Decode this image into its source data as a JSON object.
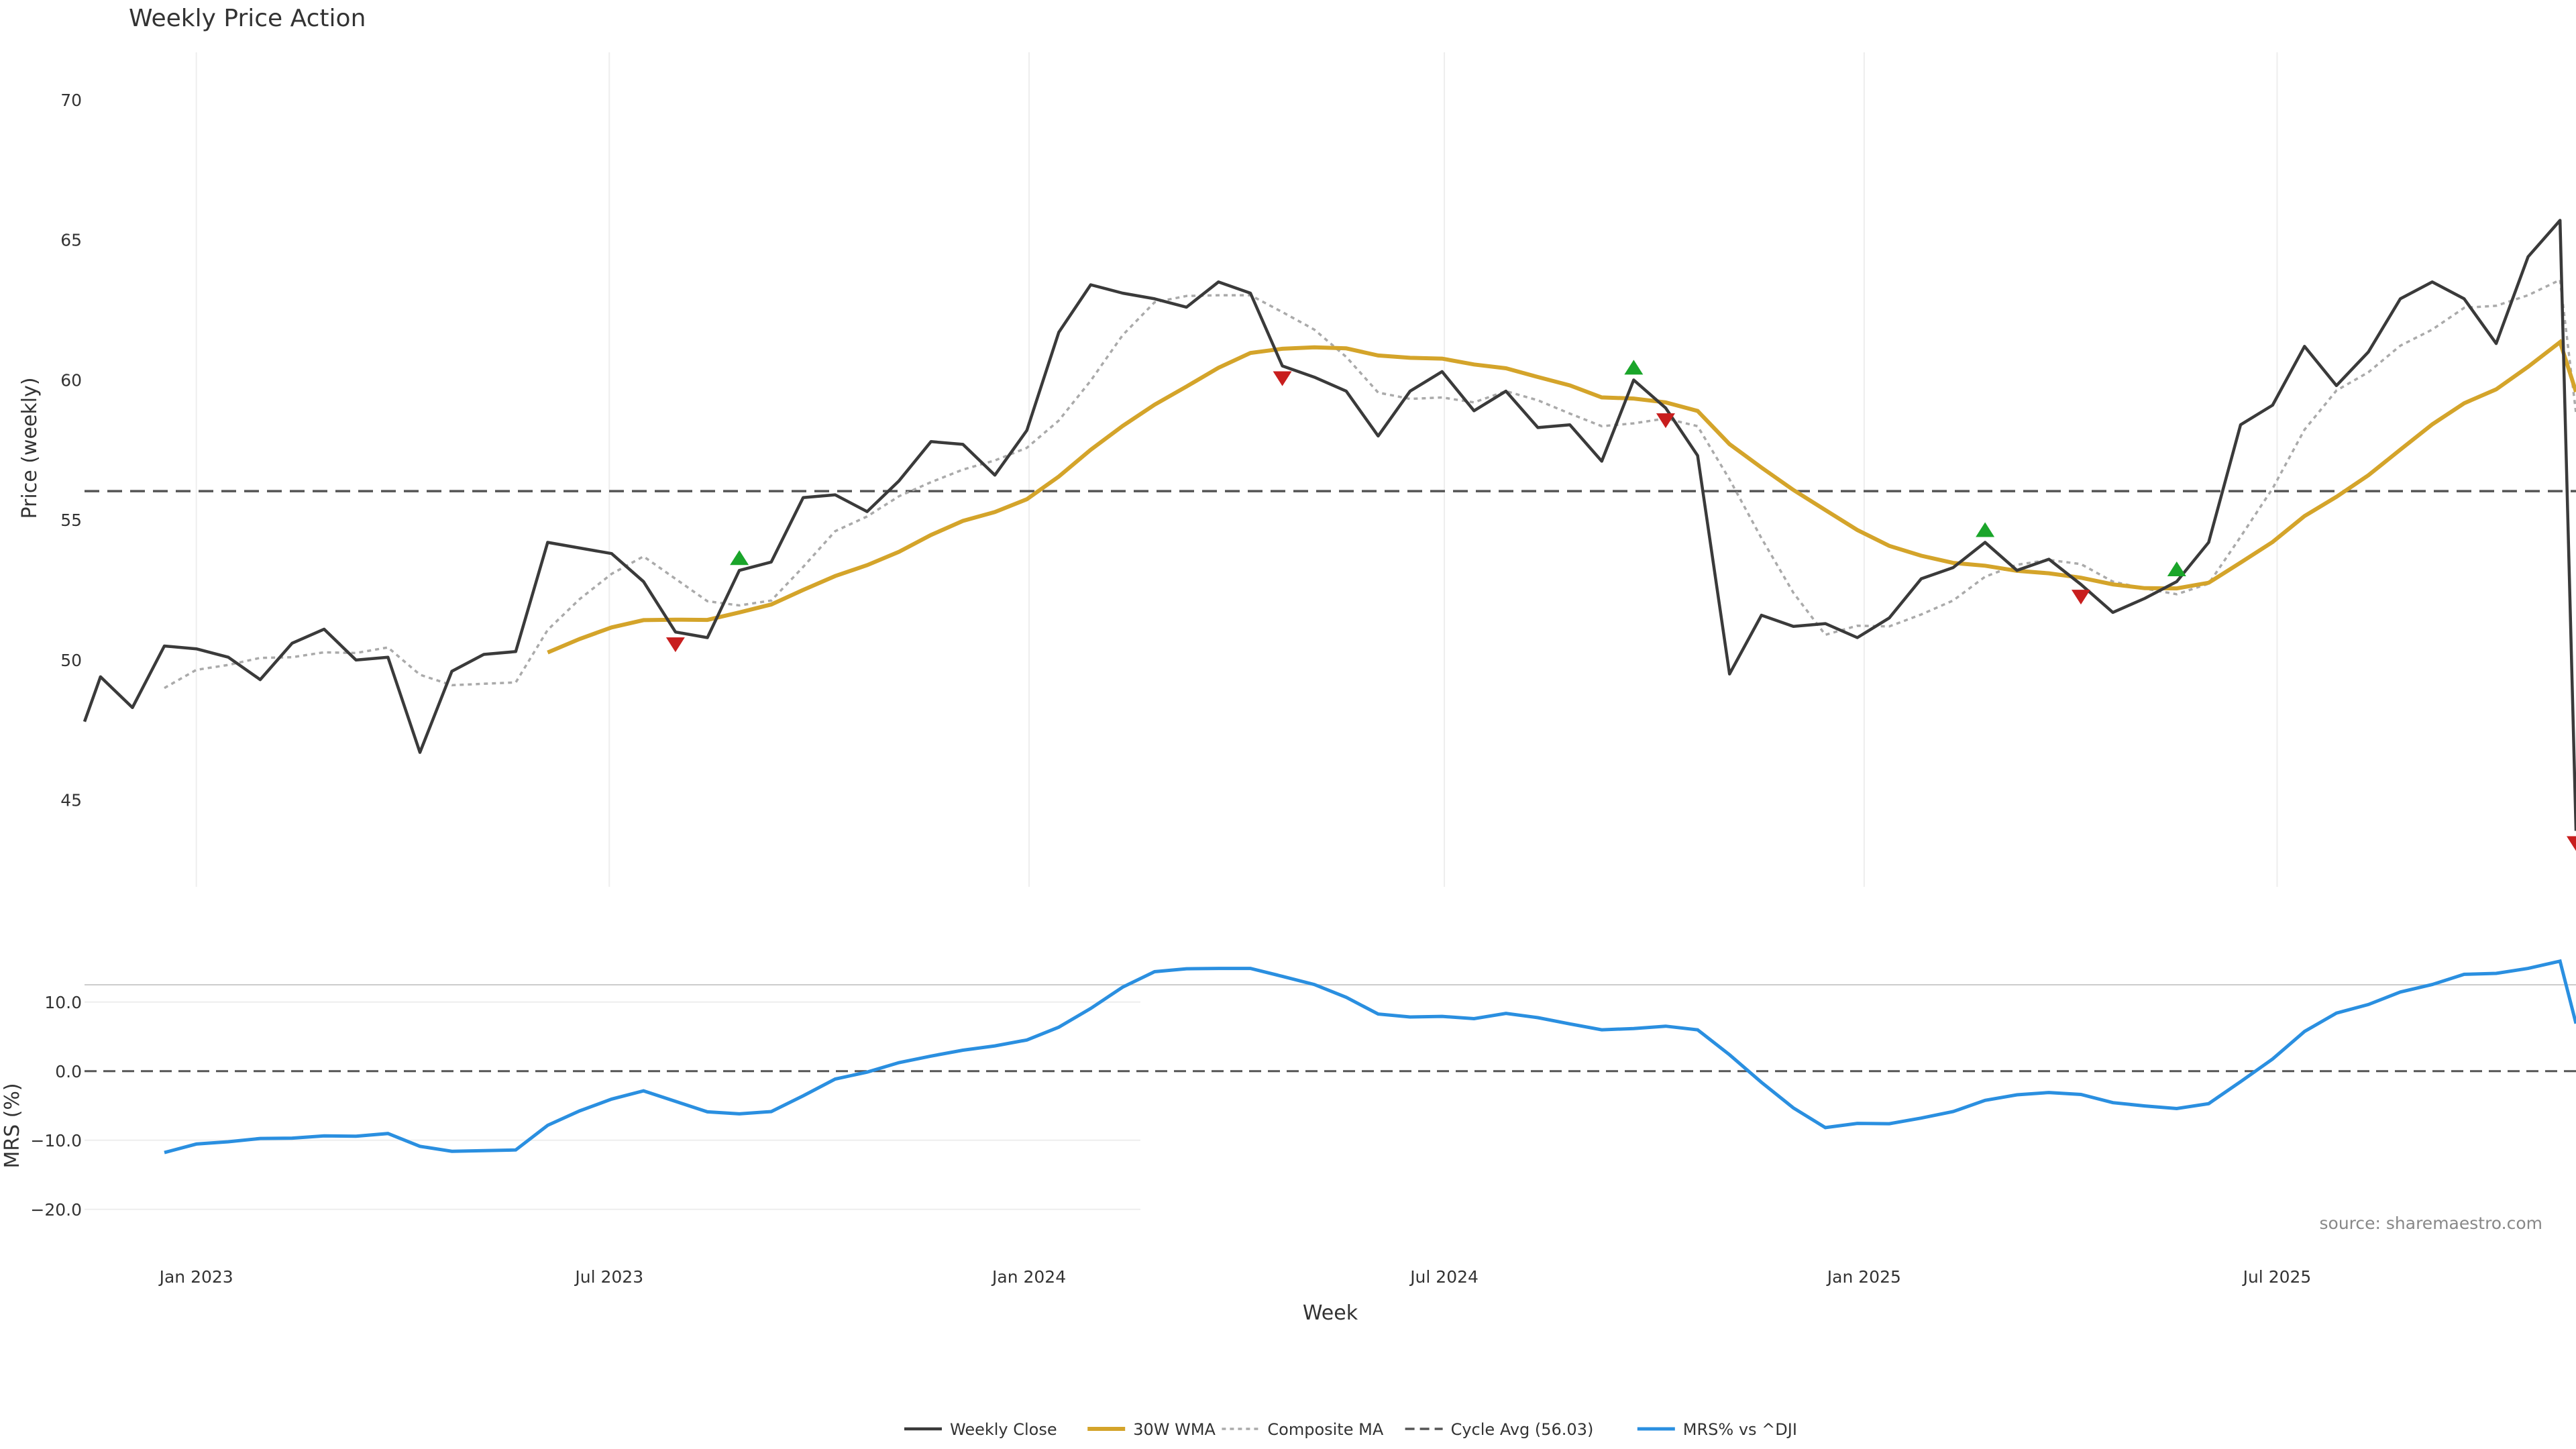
{
  "chart_data": {
    "type": "line",
    "title": "Weekly Price Action",
    "source": "source: sharemaestro.com",
    "xlabel": "Week",
    "x_ticks": [
      "Jan 2023",
      "Jul 2023",
      "Jan 2024",
      "Jul 2024",
      "Jan 2025",
      "Jul 2025"
    ],
    "x_range": [
      "2022-11-13",
      "2025-11-09"
    ],
    "price_panel": {
      "ylabel": "Price (weekly)",
      "yticks": [
        45,
        50,
        55,
        60,
        65,
        70
      ],
      "ylim": [
        41.9,
        71.7
      ],
      "grid": "x",
      "cycle_avg": 56.03
    },
    "mrs_panel": {
      "ylabel": "MRS (%)",
      "yticks": [
        -20,
        -10,
        0,
        10
      ],
      "ytick_labels": [
        "−20.0",
        "−10.0",
        "0.0",
        "10.0"
      ],
      "ylim": [
        -24,
        12.5
      ],
      "zero_line": 0
    },
    "legend": {
      "position": "bottom-center",
      "entries": [
        "Weekly Close",
        "30W WMA",
        "Composite MA",
        "Cycle Avg (56.03)",
        "MRS% vs ^DJI"
      ]
    },
    "colors": {
      "close": "#3a3a3a",
      "wma": "#d4a42a",
      "composite": "#aaaaaa",
      "cycle": "#555555",
      "mrs": "#2a8fe0",
      "buy": "#1aa52a",
      "sell": "#c81e1e"
    },
    "series": [
      {
        "name": "Weekly Close",
        "points": [
          [
            "2022-11-13",
            47.8
          ],
          [
            "2022-11-20",
            49.4
          ],
          [
            "2022-12-04",
            48.3
          ],
          [
            "2022-12-18",
            50.5
          ],
          [
            "2023-01-01",
            50.4
          ],
          [
            "2023-01-15",
            50.1
          ],
          [
            "2023-01-29",
            49.3
          ],
          [
            "2023-02-12",
            50.6
          ],
          [
            "2023-02-26",
            51.1
          ],
          [
            "2023-03-12",
            50.0
          ],
          [
            "2023-03-26",
            50.1
          ],
          [
            "2023-04-09",
            46.7
          ],
          [
            "2023-04-23",
            49.6
          ],
          [
            "2023-05-07",
            50.2
          ],
          [
            "2023-05-21",
            50.3
          ],
          [
            "2023-06-04",
            54.2
          ],
          [
            "2023-06-18",
            54.0
          ],
          [
            "2023-07-02",
            53.8
          ],
          [
            "2023-07-16",
            52.8
          ],
          [
            "2023-07-30",
            51.0
          ],
          [
            "2023-08-13",
            50.8
          ],
          [
            "2023-08-27",
            53.2
          ],
          [
            "2023-09-10",
            53.5
          ],
          [
            "2023-09-24",
            55.8
          ],
          [
            "2023-10-08",
            55.9
          ],
          [
            "2023-10-22",
            55.3
          ],
          [
            "2023-11-05",
            56.4
          ],
          [
            "2023-11-19",
            57.8
          ],
          [
            "2023-12-03",
            57.7
          ],
          [
            "2023-12-17",
            56.6
          ],
          [
            "2023-12-31",
            58.2
          ],
          [
            "2024-01-14",
            61.7
          ],
          [
            "2024-01-28",
            63.4
          ],
          [
            "2024-02-11",
            63.1
          ],
          [
            "2024-02-25",
            62.9
          ],
          [
            "2024-03-10",
            62.6
          ],
          [
            "2024-03-24",
            63.5
          ],
          [
            "2024-04-07",
            63.1
          ],
          [
            "2024-04-21",
            60.5
          ],
          [
            "2024-05-05",
            60.1
          ],
          [
            "2024-05-19",
            59.6
          ],
          [
            "2024-06-02",
            58.0
          ],
          [
            "2024-06-16",
            59.6
          ],
          [
            "2024-06-30",
            60.3
          ],
          [
            "2024-07-14",
            58.9
          ],
          [
            "2024-07-28",
            59.6
          ],
          [
            "2024-08-11",
            58.3
          ],
          [
            "2024-08-25",
            58.4
          ],
          [
            "2024-09-08",
            57.1
          ],
          [
            "2024-09-22",
            60.0
          ],
          [
            "2024-10-06",
            59.0
          ],
          [
            "2024-10-20",
            57.3
          ],
          [
            "2024-11-03",
            49.5
          ],
          [
            "2024-11-17",
            51.6
          ],
          [
            "2024-12-01",
            51.2
          ],
          [
            "2024-12-15",
            51.3
          ],
          [
            "2024-12-29",
            50.8
          ],
          [
            "2025-01-12",
            51.5
          ],
          [
            "2025-01-26",
            52.9
          ],
          [
            "2025-02-09",
            53.3
          ],
          [
            "2025-02-23",
            54.2
          ],
          [
            "2025-03-09",
            53.2
          ],
          [
            "2025-03-23",
            53.6
          ],
          [
            "2025-04-06",
            52.7
          ],
          [
            "2025-04-20",
            51.7
          ],
          [
            "2025-05-04",
            52.2
          ],
          [
            "2025-05-18",
            52.8
          ],
          [
            "2025-06-01",
            54.2
          ],
          [
            "2025-06-15",
            58.4
          ],
          [
            "2025-06-29",
            59.1
          ],
          [
            "2025-07-13",
            61.2
          ],
          [
            "2025-07-27",
            59.8
          ],
          [
            "2025-08-10",
            61.0
          ],
          [
            "2025-08-24",
            62.9
          ],
          [
            "2025-09-07",
            63.5
          ],
          [
            "2025-09-21",
            62.9
          ],
          [
            "2025-10-05",
            61.3
          ],
          [
            "2025-10-19",
            64.4
          ],
          [
            "2025-11-02",
            65.7
          ],
          [
            "2025-11-09",
            43.9
          ]
        ]
      }
    ]
  }
}
